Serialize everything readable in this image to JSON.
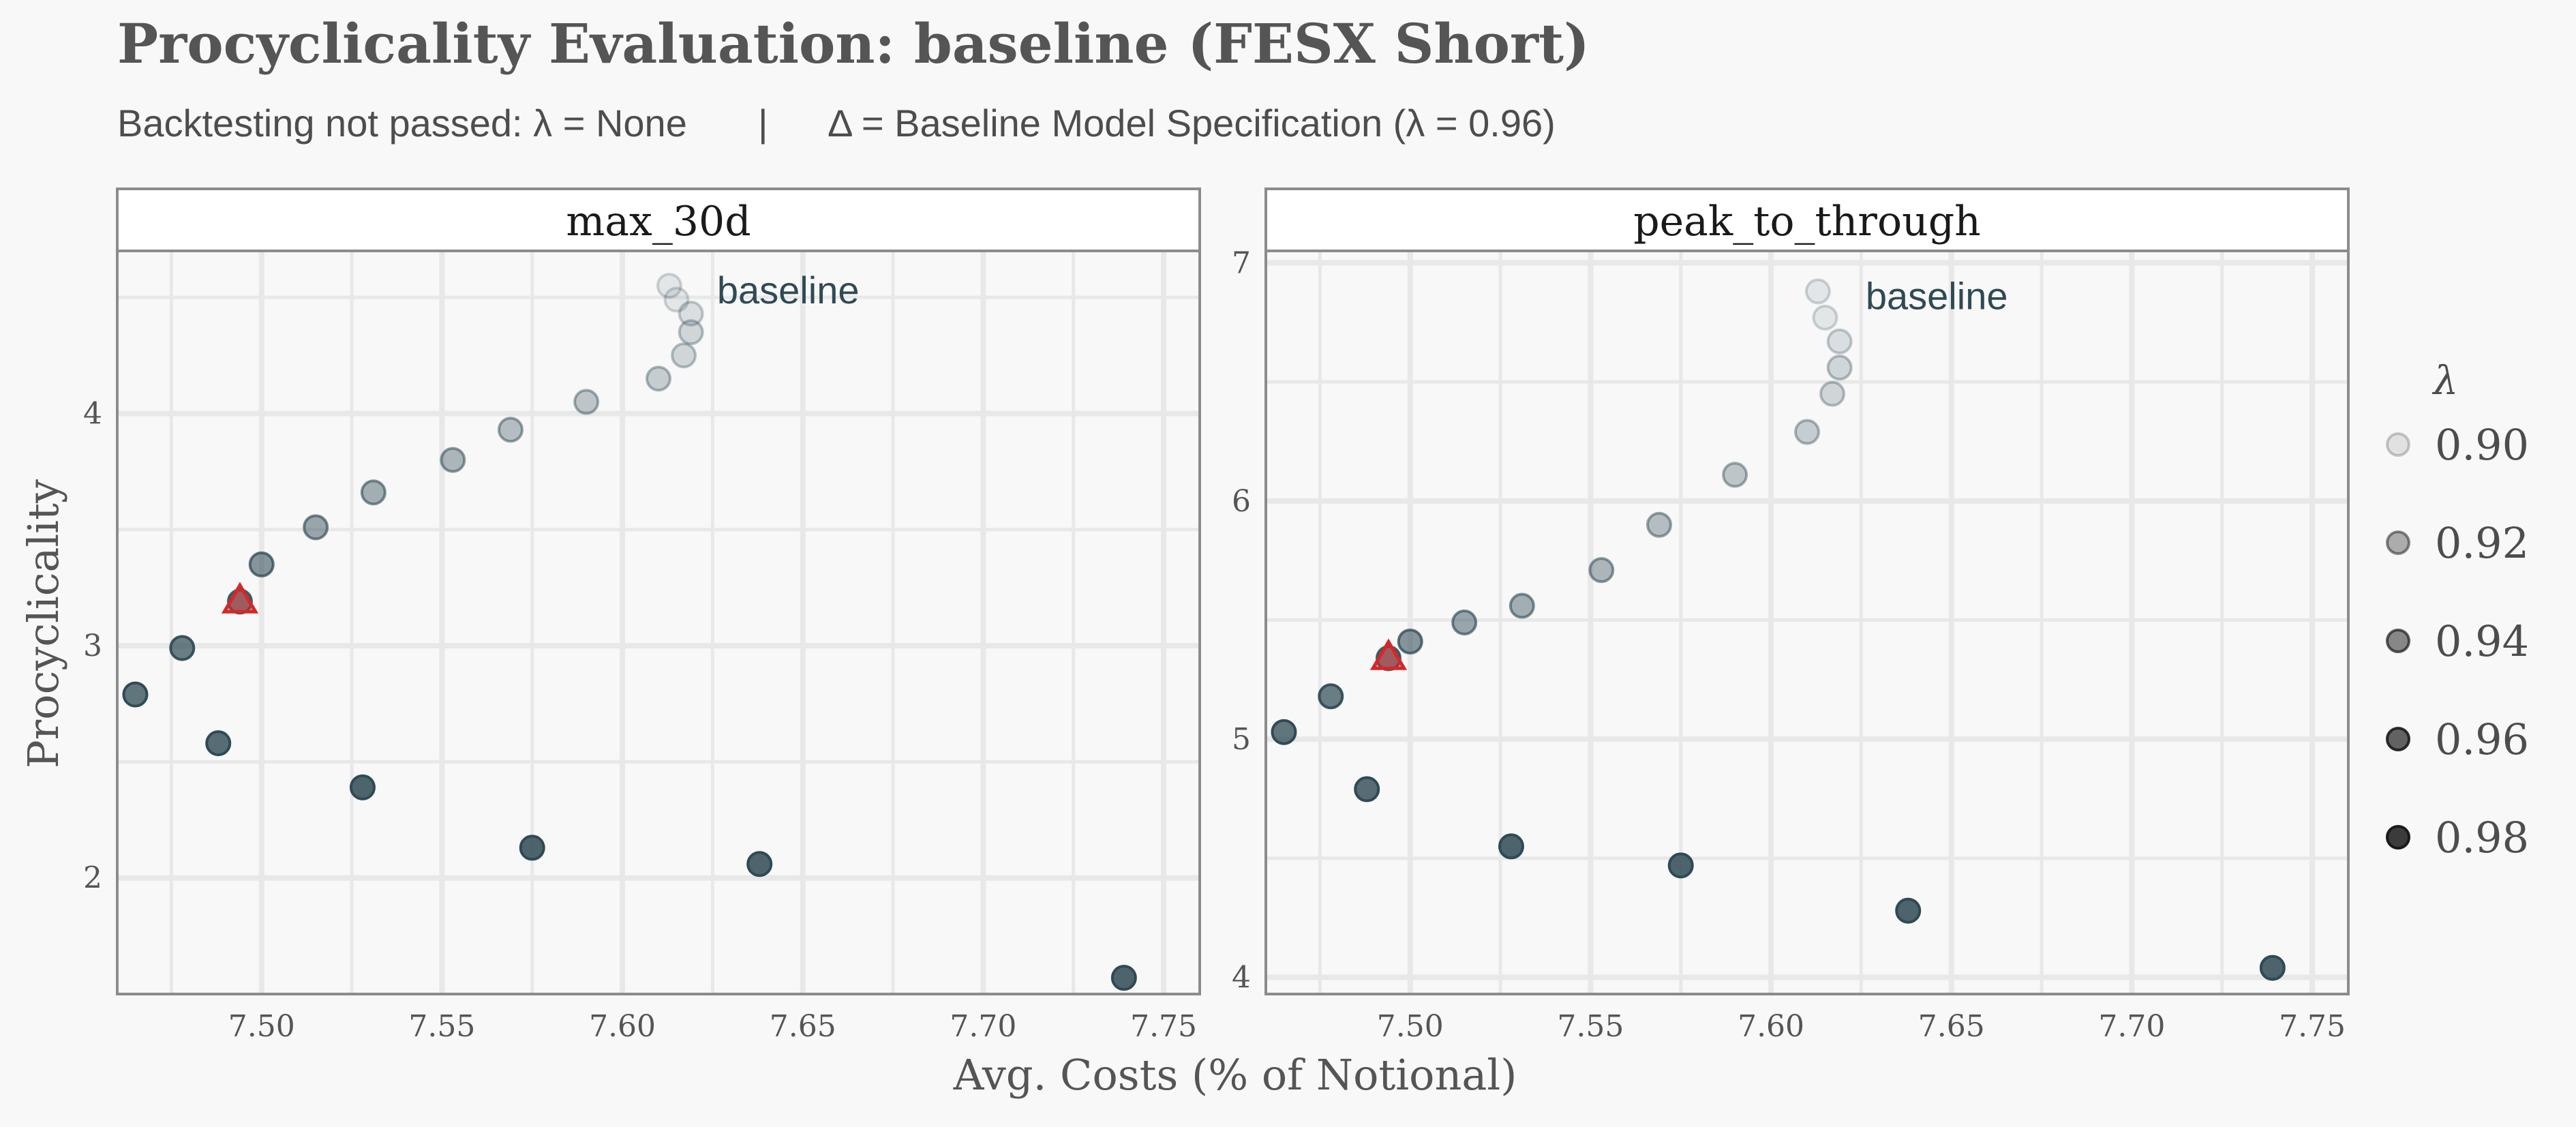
{
  "title": "Procyclicality Evaluation: baseline (FESX Short)",
  "subtitle": {
    "left": "Backtesting not passed: λ = None",
    "sep": "|",
    "right": "Δ = Baseline Model Specification (λ = 0.96)"
  },
  "colors": {
    "point": "#2f4a55",
    "baseline_marker": "#d62728",
    "grid": "#e8e8e8",
    "panel_border": "#8c8c8c"
  },
  "chart_data": [
    {
      "type": "scatter",
      "facet": "max_30d",
      "xlabel": "Avg. Costs (% of Notional)",
      "ylabel": "Procyclicality",
      "xlim": [
        7.46,
        7.76
      ],
      "ylim": [
        1.5,
        4.7
      ],
      "x_ticks": [
        "7.50",
        "7.55",
        "7.60",
        "7.65",
        "7.70",
        "7.75"
      ],
      "y_ticks": [
        "2",
        "3",
        "4"
      ],
      "annotation": "baseline",
      "points": [
        {
          "lambda": 0.9,
          "x": 7.613,
          "y": 4.55
        },
        {
          "lambda": 0.9,
          "x": 7.615,
          "y": 4.49
        },
        {
          "lambda": 0.905,
          "x": 7.619,
          "y": 4.43
        },
        {
          "lambda": 0.91,
          "x": 7.619,
          "y": 4.35
        },
        {
          "lambda": 0.91,
          "x": 7.617,
          "y": 4.25
        },
        {
          "lambda": 0.915,
          "x": 7.61,
          "y": 4.15
        },
        {
          "lambda": 0.92,
          "x": 7.59,
          "y": 4.05
        },
        {
          "lambda": 0.925,
          "x": 7.569,
          "y": 3.93
        },
        {
          "lambda": 0.93,
          "x": 7.553,
          "y": 3.8
        },
        {
          "lambda": 0.935,
          "x": 7.531,
          "y": 3.66
        },
        {
          "lambda": 0.94,
          "x": 7.515,
          "y": 3.51
        },
        {
          "lambda": 0.95,
          "x": 7.5,
          "y": 3.35
        },
        {
          "lambda": 0.96,
          "x": 7.494,
          "y": 3.19
        },
        {
          "lambda": 0.965,
          "x": 7.478,
          "y": 2.99
        },
        {
          "lambda": 0.97,
          "x": 7.465,
          "y": 2.79
        },
        {
          "lambda": 0.975,
          "x": 7.488,
          "y": 2.58
        },
        {
          "lambda": 0.98,
          "x": 7.528,
          "y": 2.39
        },
        {
          "lambda": 0.985,
          "x": 7.575,
          "y": 2.13
        },
        {
          "lambda": 0.99,
          "x": 7.638,
          "y": 2.06
        },
        {
          "lambda": 0.995,
          "x": 7.739,
          "y": 1.57
        }
      ],
      "baseline": {
        "lambda": 0.96,
        "x": 7.494,
        "y": 3.19
      }
    },
    {
      "type": "scatter",
      "facet": "peak_to_through",
      "xlabel": "Avg. Costs (% of Notional)",
      "ylabel": "Procyclicality",
      "xlim": [
        7.46,
        7.76
      ],
      "ylim": [
        3.93,
        7.05
      ],
      "x_ticks": [
        "7.50",
        "7.55",
        "7.60",
        "7.65",
        "7.70",
        "7.75"
      ],
      "y_ticks": [
        "4",
        "5",
        "6",
        "7"
      ],
      "annotation": "baseline",
      "points": [
        {
          "lambda": 0.9,
          "x": 7.613,
          "y": 6.88
        },
        {
          "lambda": 0.9,
          "x": 7.615,
          "y": 6.77
        },
        {
          "lambda": 0.905,
          "x": 7.619,
          "y": 6.67
        },
        {
          "lambda": 0.91,
          "x": 7.619,
          "y": 6.56
        },
        {
          "lambda": 0.91,
          "x": 7.617,
          "y": 6.45
        },
        {
          "lambda": 0.915,
          "x": 7.61,
          "y": 6.29
        },
        {
          "lambda": 0.92,
          "x": 7.59,
          "y": 6.11
        },
        {
          "lambda": 0.925,
          "x": 7.569,
          "y": 5.9
        },
        {
          "lambda": 0.93,
          "x": 7.553,
          "y": 5.71
        },
        {
          "lambda": 0.935,
          "x": 7.531,
          "y": 5.56
        },
        {
          "lambda": 0.94,
          "x": 7.515,
          "y": 5.49
        },
        {
          "lambda": 0.95,
          "x": 7.5,
          "y": 5.41
        },
        {
          "lambda": 0.96,
          "x": 7.494,
          "y": 5.34
        },
        {
          "lambda": 0.965,
          "x": 7.478,
          "y": 5.18
        },
        {
          "lambda": 0.97,
          "x": 7.465,
          "y": 5.03
        },
        {
          "lambda": 0.975,
          "x": 7.488,
          "y": 4.79
        },
        {
          "lambda": 0.98,
          "x": 7.528,
          "y": 4.55
        },
        {
          "lambda": 0.985,
          "x": 7.575,
          "y": 4.47
        },
        {
          "lambda": 0.99,
          "x": 7.638,
          "y": 4.28
        },
        {
          "lambda": 0.995,
          "x": 7.739,
          "y": 4.04
        }
      ],
      "baseline": {
        "lambda": 0.96,
        "x": 7.494,
        "y": 5.34
      }
    }
  ],
  "legend": {
    "title": "λ",
    "position": "right",
    "items": [
      {
        "label": "0.90",
        "alpha": 0.12
      },
      {
        "label": "0.92",
        "alpha": 0.4
      },
      {
        "label": "0.94",
        "alpha": 0.6
      },
      {
        "label": "0.96",
        "alpha": 0.8
      },
      {
        "label": "0.98",
        "alpha": 1.0
      }
    ]
  }
}
